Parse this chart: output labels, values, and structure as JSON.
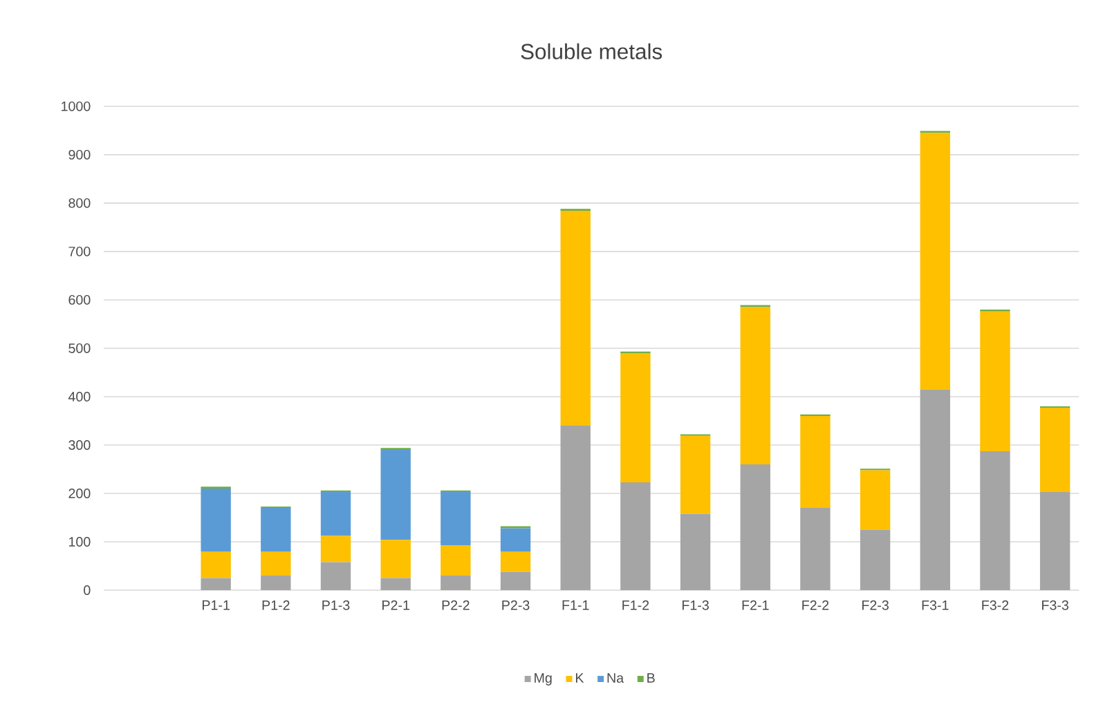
{
  "chart_data": {
    "type": "bar",
    "title": "Soluble metals",
    "stacked": true,
    "grid": "y",
    "legend": "bottom",
    "categories": [
      "P1-1",
      "P1-2",
      "P1-3",
      "P2-1",
      "P2-2",
      "P2-3",
      "F1-1",
      "F1-2",
      "F1-3",
      "F2-1",
      "F2-2",
      "F2-3",
      "F3-1",
      "F3-2",
      "F3-3"
    ],
    "series": [
      {
        "name": "Mg",
        "color": "#a5a5a5",
        "values": [
          25,
          30,
          58,
          25,
          30,
          38,
          340,
          223,
          158,
          260,
          170,
          125,
          415,
          287,
          203
        ]
      },
      {
        "name": "K",
        "color": "#ffc000",
        "values": [
          55,
          50,
          54,
          79,
          62,
          42,
          444,
          267,
          161,
          325,
          190,
          123,
          530,
          289,
          174
        ]
      },
      {
        "name": "Na",
        "color": "#5b9bd5",
        "values": [
          130,
          90,
          91,
          186,
          111,
          48,
          0,
          0,
          0,
          0,
          0,
          0,
          0,
          0,
          0
        ]
      },
      {
        "name": "B",
        "color": "#70ad47",
        "values": [
          4,
          3,
          3,
          4,
          3,
          4,
          4,
          3,
          3,
          4,
          3,
          3,
          4,
          4,
          3
        ]
      }
    ],
    "ylim": [
      0,
      1000
    ],
    "yticks": [
      0,
      100,
      200,
      300,
      400,
      500,
      600,
      700,
      800,
      900,
      1000
    ]
  }
}
